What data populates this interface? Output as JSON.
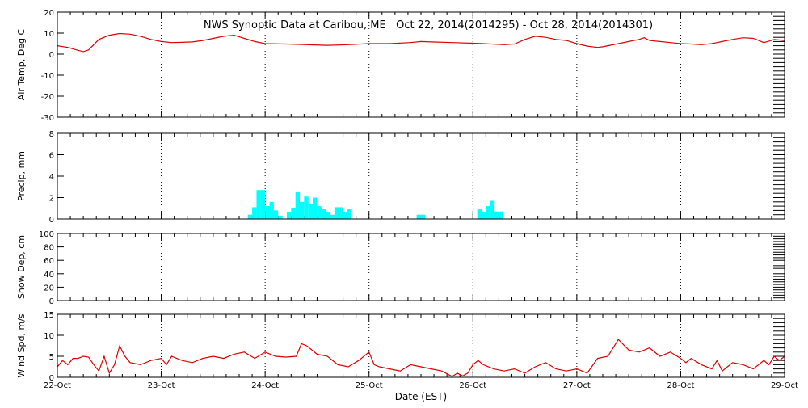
{
  "chart_data": {
    "type": "multi-panel",
    "title": "NWS Synoptic Data at Caribou, ME   Oct 22, 2014(2014295) - Oct 28, 2014(2014301)",
    "xlabel": "Date (EST)",
    "x_ticks": [
      "22-Oct",
      "23-Oct",
      "24-Oct",
      "25-Oct",
      "26-Oct",
      "27-Oct",
      "28-Oct",
      "29-Oct"
    ],
    "x_range_days": [
      0,
      7
    ],
    "grid": "vertical dotted at day boundaries",
    "colors": {
      "line": "#e00000",
      "bars": "#00ffff",
      "axes": "#000000"
    },
    "panels": [
      {
        "key": "temp",
        "type": "line",
        "ylabel": "Air Temp, Deg C",
        "ylim": [
          -30,
          20
        ],
        "y_ticks": [
          20,
          10,
          0,
          -10,
          -20,
          -30
        ],
        "points": [
          [
            0.0,
            4.0
          ],
          [
            0.1,
            3.2
          ],
          [
            0.2,
            1.8
          ],
          [
            0.25,
            1.2
          ],
          [
            0.3,
            2.0
          ],
          [
            0.35,
            4.5
          ],
          [
            0.4,
            7.0
          ],
          [
            0.5,
            9.0
          ],
          [
            0.6,
            9.8
          ],
          [
            0.7,
            9.5
          ],
          [
            0.8,
            8.5
          ],
          [
            0.9,
            7.0
          ],
          [
            1.0,
            6.0
          ],
          [
            1.1,
            5.5
          ],
          [
            1.2,
            5.6
          ],
          [
            1.3,
            5.8
          ],
          [
            1.4,
            6.5
          ],
          [
            1.5,
            7.5
          ],
          [
            1.6,
            8.5
          ],
          [
            1.7,
            9.0
          ],
          [
            1.8,
            7.5
          ],
          [
            1.9,
            6.0
          ],
          [
            2.0,
            5.0
          ],
          [
            2.2,
            4.8
          ],
          [
            2.4,
            4.5
          ],
          [
            2.6,
            4.2
          ],
          [
            2.8,
            4.5
          ],
          [
            3.0,
            5.0
          ],
          [
            3.2,
            5.0
          ],
          [
            3.4,
            5.5
          ],
          [
            3.5,
            6.0
          ],
          [
            3.6,
            5.8
          ],
          [
            3.8,
            5.5
          ],
          [
            4.0,
            5.2
          ],
          [
            4.1,
            5.0
          ],
          [
            4.3,
            4.5
          ],
          [
            4.4,
            4.8
          ],
          [
            4.5,
            7.0
          ],
          [
            4.6,
            8.5
          ],
          [
            4.7,
            8.0
          ],
          [
            4.8,
            7.0
          ],
          [
            4.9,
            6.5
          ],
          [
            5.0,
            5.0
          ],
          [
            5.1,
            3.8
          ],
          [
            5.2,
            3.2
          ],
          [
            5.25,
            3.5
          ],
          [
            5.3,
            4.0
          ],
          [
            5.4,
            5.0
          ],
          [
            5.5,
            6.0
          ],
          [
            5.6,
            7.0
          ],
          [
            5.65,
            7.8
          ],
          [
            5.7,
            6.5
          ],
          [
            5.8,
            6.0
          ],
          [
            5.9,
            5.5
          ],
          [
            6.0,
            5.0
          ],
          [
            6.1,
            4.8
          ],
          [
            6.2,
            4.5
          ],
          [
            6.3,
            5.0
          ],
          [
            6.4,
            6.0
          ],
          [
            6.5,
            7.0
          ],
          [
            6.6,
            7.8
          ],
          [
            6.7,
            7.5
          ],
          [
            6.75,
            6.5
          ],
          [
            6.8,
            5.5
          ],
          [
            6.85,
            6.2
          ],
          [
            6.9,
            7.0
          ],
          [
            7.0,
            6.5
          ]
        ]
      },
      {
        "key": "precip",
        "type": "bar",
        "ylabel": "Precip, mm",
        "ylim": [
          0,
          8
        ],
        "y_ticks": [
          8,
          6,
          4,
          2,
          0
        ],
        "bin_width": 0.0417,
        "bars": [
          [
            1.833,
            0.4
          ],
          [
            1.875,
            1.1
          ],
          [
            1.917,
            2.7
          ],
          [
            1.958,
            2.7
          ],
          [
            2.0,
            1.2
          ],
          [
            2.042,
            1.6
          ],
          [
            2.083,
            0.8
          ],
          [
            2.125,
            0.3
          ],
          [
            2.208,
            0.6
          ],
          [
            2.25,
            1.0
          ],
          [
            2.292,
            2.5
          ],
          [
            2.333,
            1.6
          ],
          [
            2.375,
            2.1
          ],
          [
            2.417,
            1.4
          ],
          [
            2.458,
            2.0
          ],
          [
            2.5,
            1.2
          ],
          [
            2.542,
            0.9
          ],
          [
            2.583,
            0.6
          ],
          [
            2.625,
            0.4
          ],
          [
            2.667,
            1.1
          ],
          [
            2.708,
            1.1
          ],
          [
            2.75,
            0.6
          ],
          [
            2.792,
            0.9
          ],
          [
            3.458,
            0.4
          ],
          [
            3.5,
            0.4
          ],
          [
            4.042,
            0.9
          ],
          [
            4.083,
            0.6
          ],
          [
            4.125,
            1.2
          ],
          [
            4.167,
            1.7
          ],
          [
            4.208,
            0.7
          ],
          [
            4.25,
            0.7
          ]
        ]
      },
      {
        "key": "snow",
        "type": "empty",
        "ylabel": "Snow Dep, cm",
        "ylim": [
          0,
          100
        ],
        "y_ticks": [
          100,
          80,
          60,
          40,
          20,
          0
        ]
      },
      {
        "key": "wind",
        "type": "line",
        "ylabel": "Wind Spd, m/s",
        "ylim": [
          0,
          15
        ],
        "y_ticks": [
          15,
          10,
          5,
          0
        ],
        "points": [
          [
            0.0,
            2.5
          ],
          [
            0.05,
            4.0
          ],
          [
            0.1,
            3.0
          ],
          [
            0.15,
            4.5
          ],
          [
            0.2,
            4.5
          ],
          [
            0.25,
            5.0
          ],
          [
            0.3,
            4.8
          ],
          [
            0.35,
            3.0
          ],
          [
            0.4,
            1.5
          ],
          [
            0.45,
            5.0
          ],
          [
            0.5,
            1.0
          ],
          [
            0.55,
            3.0
          ],
          [
            0.6,
            7.5
          ],
          [
            0.65,
            5.0
          ],
          [
            0.7,
            3.5
          ],
          [
            0.8,
            3.0
          ],
          [
            0.9,
            4.0
          ],
          [
            1.0,
            4.5
          ],
          [
            1.05,
            3.0
          ],
          [
            1.1,
            5.0
          ],
          [
            1.2,
            4.0
          ],
          [
            1.3,
            3.5
          ],
          [
            1.4,
            4.5
          ],
          [
            1.5,
            5.0
          ],
          [
            1.6,
            4.5
          ],
          [
            1.7,
            5.5
          ],
          [
            1.8,
            6.0
          ],
          [
            1.9,
            4.5
          ],
          [
            2.0,
            6.0
          ],
          [
            2.1,
            5.0
          ],
          [
            2.2,
            4.8
          ],
          [
            2.3,
            5.0
          ],
          [
            2.35,
            8.0
          ],
          [
            2.4,
            7.5
          ],
          [
            2.5,
            5.5
          ],
          [
            2.6,
            5.0
          ],
          [
            2.7,
            3.0
          ],
          [
            2.8,
            2.5
          ],
          [
            2.9,
            4.0
          ],
          [
            3.0,
            6.0
          ],
          [
            3.05,
            3.0
          ],
          [
            3.1,
            2.5
          ],
          [
            3.2,
            2.0
          ],
          [
            3.3,
            1.5
          ],
          [
            3.4,
            3.0
          ],
          [
            3.5,
            2.5
          ],
          [
            3.6,
            2.0
          ],
          [
            3.7,
            1.5
          ],
          [
            3.8,
            0.2
          ],
          [
            3.85,
            1.0
          ],
          [
            3.9,
            0.3
          ],
          [
            3.95,
            1.0
          ],
          [
            4.0,
            3.0
          ],
          [
            4.05,
            4.0
          ],
          [
            4.1,
            3.0
          ],
          [
            4.2,
            2.0
          ],
          [
            4.3,
            1.5
          ],
          [
            4.4,
            2.0
          ],
          [
            4.5,
            1.0
          ],
          [
            4.6,
            2.5
          ],
          [
            4.7,
            3.5
          ],
          [
            4.8,
            2.0
          ],
          [
            4.9,
            1.5
          ],
          [
            5.0,
            2.0
          ],
          [
            5.05,
            1.5
          ],
          [
            5.1,
            1.0
          ],
          [
            5.2,
            4.5
          ],
          [
            5.3,
            5.0
          ],
          [
            5.4,
            9.0
          ],
          [
            5.5,
            6.5
          ],
          [
            5.6,
            6.0
          ],
          [
            5.7,
            7.0
          ],
          [
            5.8,
            5.0
          ],
          [
            5.9,
            6.0
          ],
          [
            6.0,
            4.5
          ],
          [
            6.05,
            3.5
          ],
          [
            6.1,
            4.5
          ],
          [
            6.2,
            3.0
          ],
          [
            6.3,
            2.0
          ],
          [
            6.35,
            4.0
          ],
          [
            6.4,
            1.5
          ],
          [
            6.5,
            3.5
          ],
          [
            6.6,
            3.0
          ],
          [
            6.7,
            2.0
          ],
          [
            6.8,
            4.0
          ],
          [
            6.85,
            3.0
          ],
          [
            6.9,
            5.0
          ],
          [
            6.95,
            4.0
          ],
          [
            7.0,
            5.0
          ]
        ]
      }
    ]
  }
}
